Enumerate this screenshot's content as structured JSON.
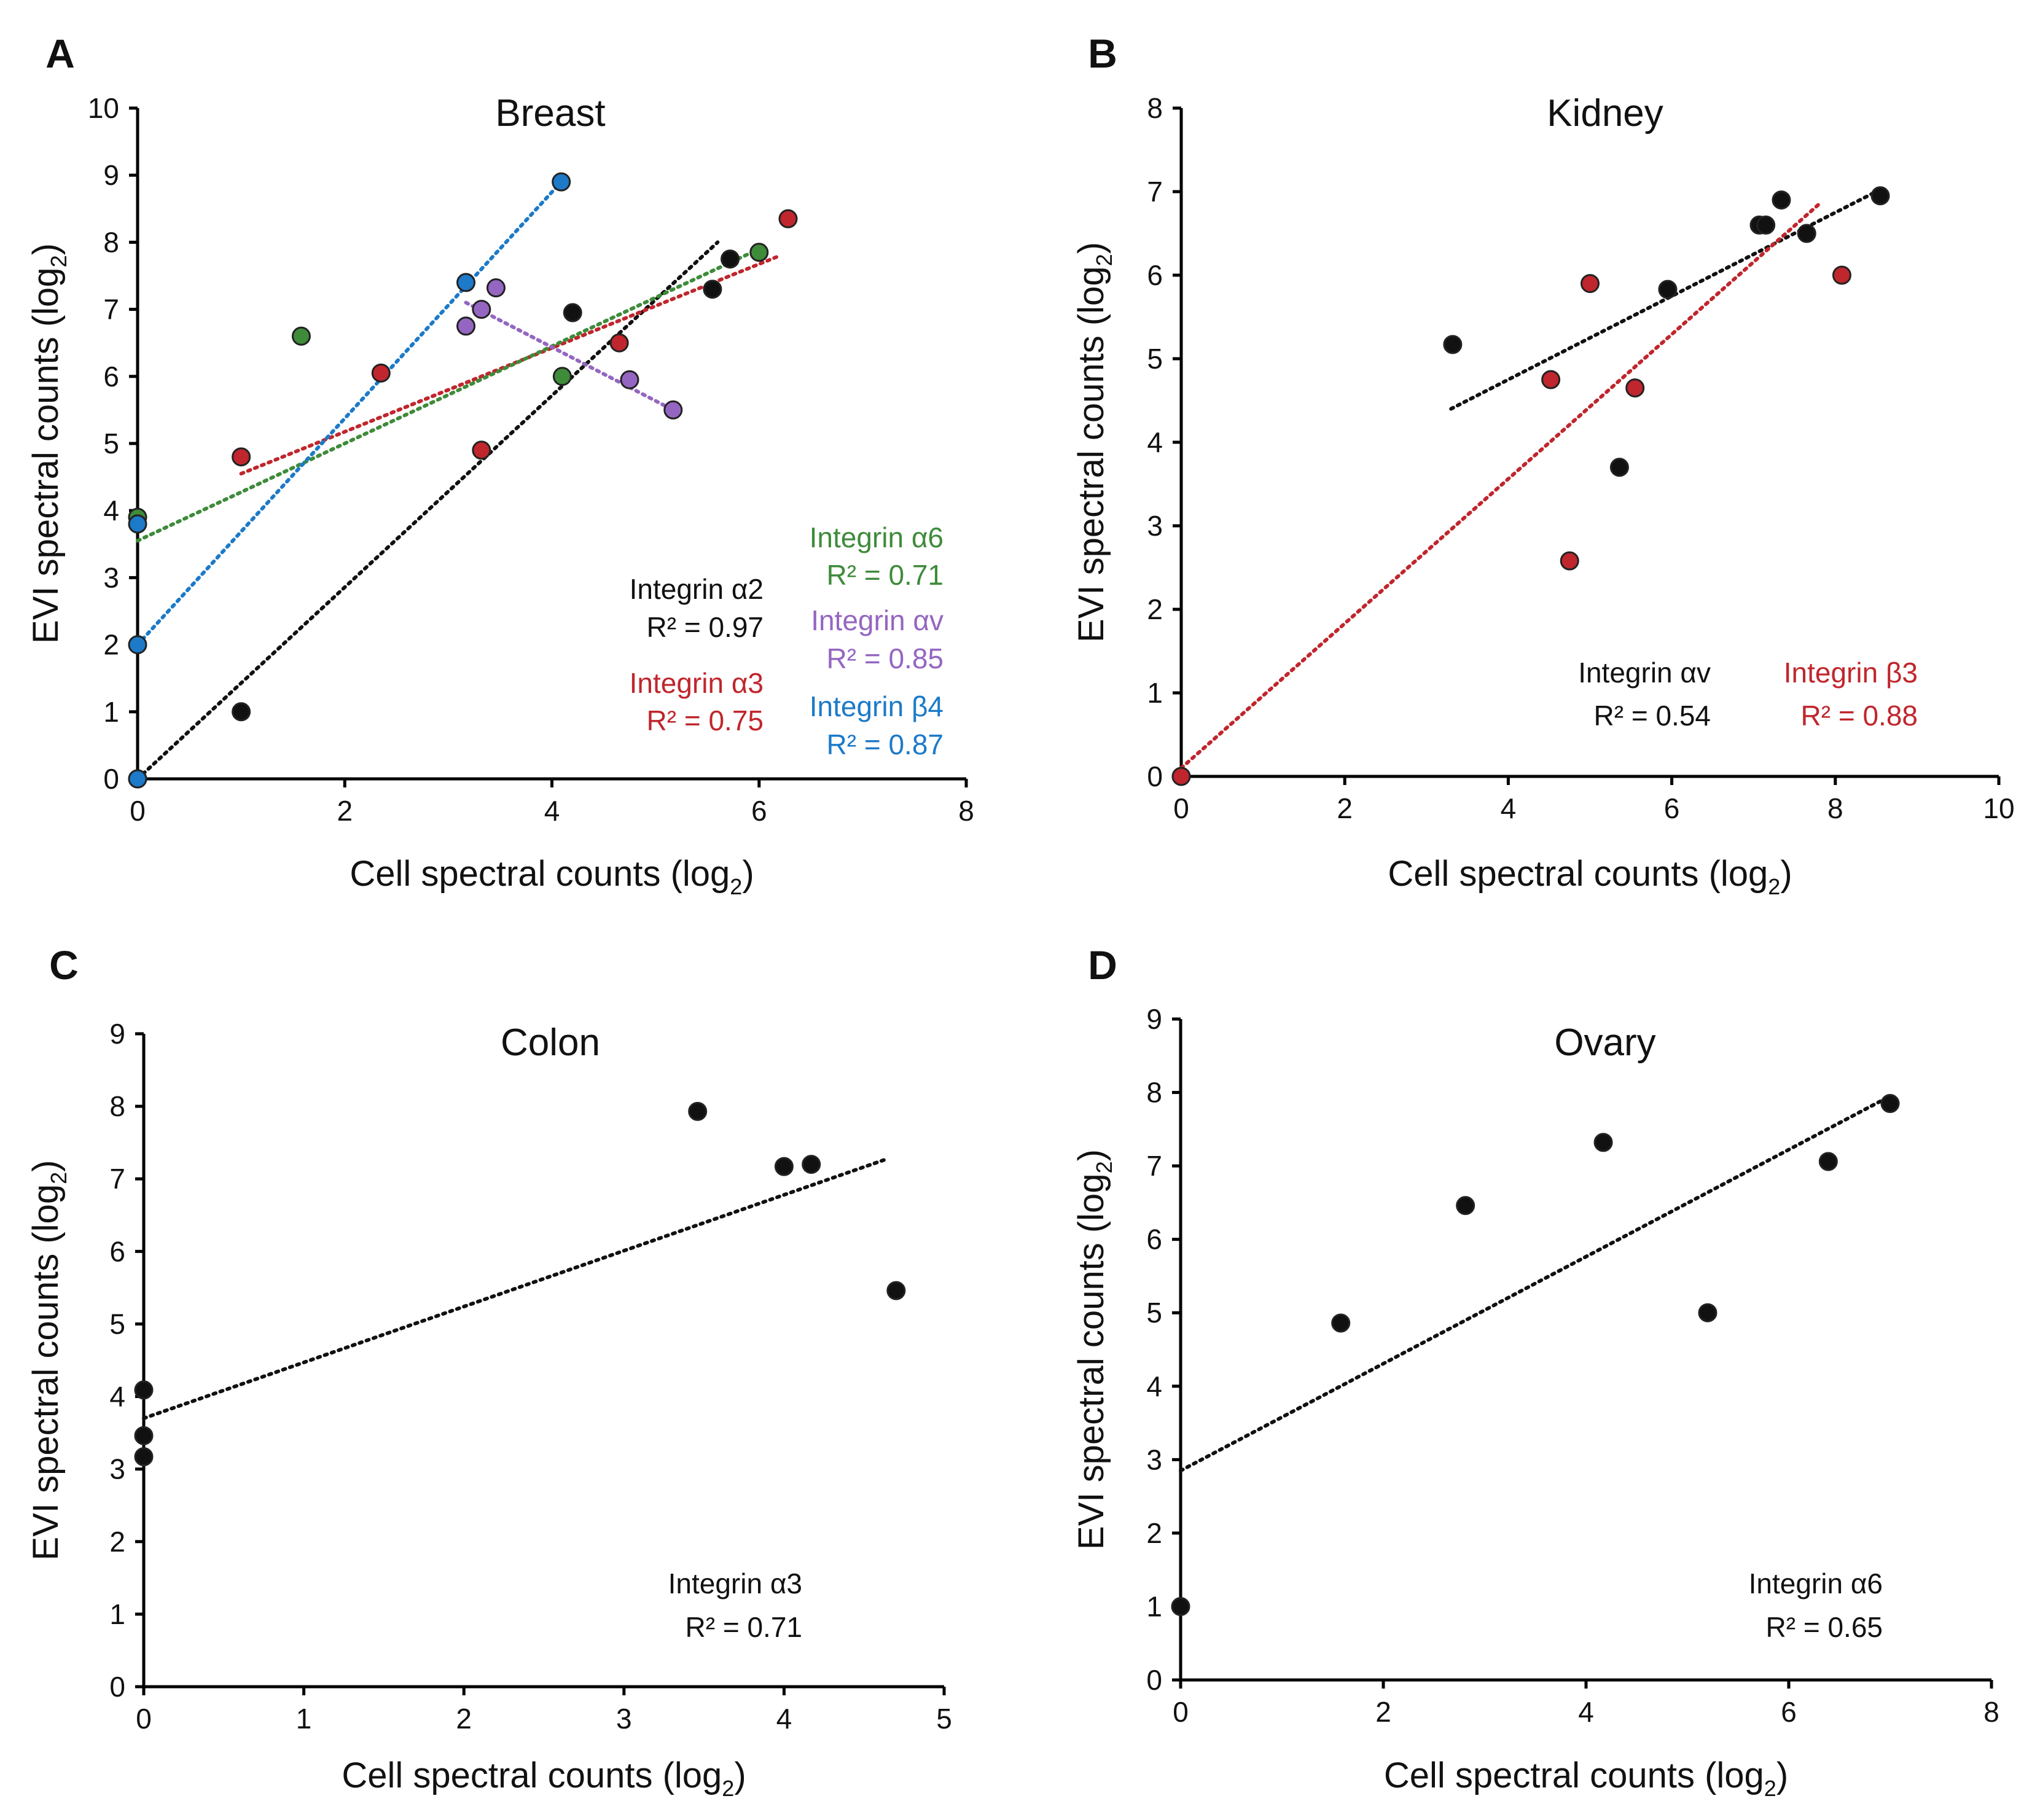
{
  "chart_data": [
    {
      "panel": "A",
      "type": "scatter",
      "title": "Breast",
      "xlabel": "Cell spectral counts (log",
      "ylabel": "EVI spectral counts (log",
      "label_subscript": "2",
      "label_close": ")",
      "xlim": [
        0,
        8
      ],
      "ylim": [
        0,
        10
      ],
      "xticks": [
        "0",
        "2",
        "4",
        "6",
        "8"
      ],
      "yticks": [
        "0",
        "1",
        "2",
        "3",
        "4",
        "5",
        "6",
        "7",
        "8",
        "9",
        "10"
      ],
      "series": [
        {
          "name": "Integrin α2",
          "r2": "R² = 0.97",
          "color": "#111111",
          "x": [
            0,
            1.0,
            4.2,
            5.55,
            5.72
          ],
          "y": [
            0,
            1.0,
            6.95,
            7.3,
            7.75
          ],
          "fit": [
            [
              0,
              0
            ],
            [
              5.6,
              8.0
            ]
          ]
        },
        {
          "name": "Integrin α3",
          "r2": "R² = 0.75",
          "color": "#c0262d",
          "x": [
            1.0,
            2.35,
            3.32,
            4.65,
            6.28
          ],
          "y": [
            4.8,
            6.05,
            4.9,
            6.5,
            8.35
          ],
          "fit": [
            [
              1.0,
              4.55
            ],
            [
              6.2,
              7.8
            ]
          ]
        },
        {
          "name": "Integrin α6",
          "r2": "R² = 0.71",
          "color": "#3e8b3a",
          "x": [
            0,
            1.58,
            4.1,
            6.0
          ],
          "y": [
            3.9,
            6.6,
            6.0,
            7.85
          ],
          "fit": [
            [
              0,
              3.55
            ],
            [
              6.0,
              7.9
            ]
          ]
        },
        {
          "name": "Integrin αv",
          "r2": "R² = 0.85",
          "color": "#9466c1",
          "x": [
            3.17,
            3.32,
            3.46,
            4.75,
            5.17
          ],
          "y": [
            6.75,
            7.0,
            7.32,
            5.95,
            5.5
          ],
          "fit": [
            [
              3.17,
              7.1
            ],
            [
              5.17,
              5.5
            ]
          ]
        },
        {
          "name": "Integrin β4",
          "r2": "R² = 0.87",
          "color": "#1c7ac8",
          "x": [
            0,
            0,
            0,
            3.17,
            4.09
          ],
          "y": [
            0,
            2.0,
            3.8,
            7.4,
            8.9
          ],
          "fit": [
            [
              0,
              2.0
            ],
            [
              4.09,
              8.9
            ]
          ]
        }
      ]
    },
    {
      "panel": "B",
      "type": "scatter",
      "title": "Kidney",
      "xlabel": "Cell spectral counts (log",
      "ylabel": "EVI spectral counts (log",
      "label_subscript": "2",
      "label_close": ")",
      "xlim": [
        0,
        10
      ],
      "ylim": [
        0,
        8
      ],
      "xticks": [
        "0",
        "2",
        "4",
        "6",
        "8",
        "10"
      ],
      "yticks": [
        "0",
        "1",
        "2",
        "3",
        "4",
        "5",
        "6",
        "7",
        "8"
      ],
      "series": [
        {
          "name": "Integrin αv",
          "r2": "R² = 0.54",
          "color": "#111111",
          "x": [
            3.32,
            5.36,
            5.95,
            7.07,
            7.15,
            7.34,
            7.65,
            8.55
          ],
          "y": [
            5.17,
            3.7,
            5.83,
            6.6,
            6.6,
            6.9,
            6.5,
            6.95
          ],
          "fit": [
            [
              3.3,
              4.4
            ],
            [
              8.5,
              7.0
            ]
          ]
        },
        {
          "name": "Integrin β3",
          "r2": "R² = 0.88",
          "color": "#c0262d",
          "x": [
            0,
            4.52,
            4.75,
            5.0,
            5.55,
            8.08
          ],
          "y": [
            0,
            4.75,
            2.58,
            5.9,
            4.65,
            6.0
          ],
          "fit": [
            [
              0,
              0.1
            ],
            [
              7.8,
              6.85
            ]
          ]
        }
      ]
    },
    {
      "panel": "C",
      "type": "scatter",
      "title": "Colon",
      "xlabel": "Cell spectral counts (log",
      "ylabel": "EVI spectral counts (log",
      "label_subscript": "2",
      "label_close": ")",
      "xlim": [
        0,
        5
      ],
      "ylim": [
        0,
        9
      ],
      "xticks": [
        "0",
        "1",
        "2",
        "3",
        "4",
        "5"
      ],
      "yticks": [
        "0",
        "1",
        "2",
        "3",
        "4",
        "5",
        "6",
        "7",
        "8",
        "9"
      ],
      "series": [
        {
          "name": "Integrin α3",
          "r2": "R² = 0.71",
          "color": "#111111",
          "x": [
            0,
            0,
            0,
            3.46,
            4.0,
            4.17,
            4.7
          ],
          "y": [
            3.17,
            3.46,
            4.09,
            7.93,
            7.17,
            7.2,
            5.46
          ],
          "fit": [
            [
              0,
              3.7
            ],
            [
              4.65,
              7.28
            ]
          ]
        }
      ]
    },
    {
      "panel": "D",
      "type": "scatter",
      "title": "Ovary",
      "xlabel": "Cell spectral counts (log",
      "ylabel": "EVI spectral counts (log",
      "label_subscript": "2",
      "label_close": ")",
      "xlim": [
        0,
        8
      ],
      "ylim": [
        0,
        9
      ],
      "xticks": [
        "0",
        "2",
        "4",
        "6",
        "8"
      ],
      "yticks": [
        "0",
        "1",
        "2",
        "3",
        "4",
        "5",
        "6",
        "7",
        "8",
        "9"
      ],
      "series": [
        {
          "name": "Integrin α6",
          "r2": "R² = 0.65",
          "color": "#111111",
          "x": [
            0,
            1.58,
            2.81,
            4.17,
            5.2,
            6.39,
            7.0
          ],
          "y": [
            1.0,
            4.86,
            6.46,
            7.32,
            5.0,
            7.06,
            7.85
          ],
          "fit": [
            [
              0,
              2.85
            ],
            [
              7.0,
              7.95
            ]
          ]
        }
      ]
    }
  ]
}
